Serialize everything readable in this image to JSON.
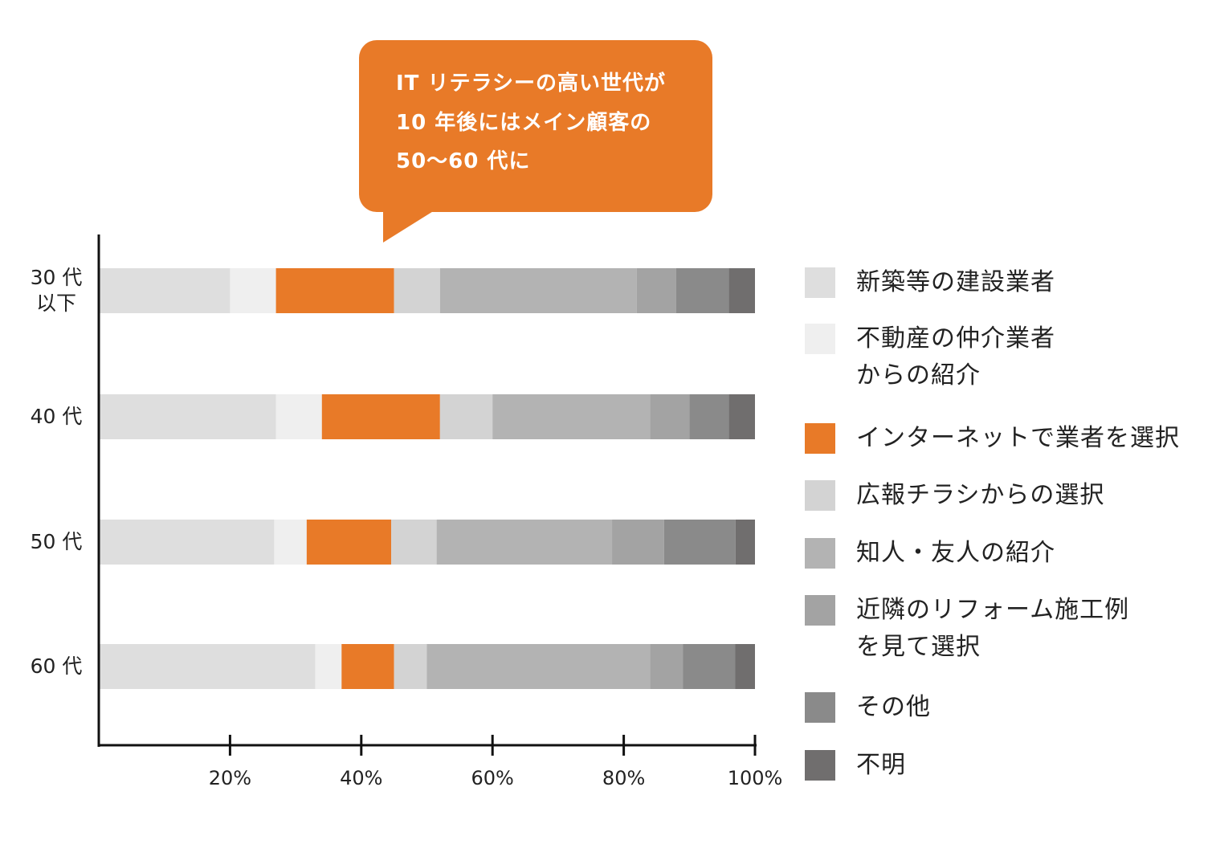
{
  "callout": {
    "lines": [
      "IT リテラシーの高い世代が",
      "10 年後にはメイン顧客の",
      "50～60 代に"
    ],
    "color": "#e87a28"
  },
  "chart_data": {
    "type": "bar",
    "orientation": "horizontal",
    "stacked": true,
    "categories": [
      "30 代\n以下",
      "40 代",
      "50 代",
      "60 代"
    ],
    "category_lines": [
      [
        "30 代",
        "以下"
      ],
      [
        "40 代"
      ],
      [
        "50 代"
      ],
      [
        "60 代"
      ]
    ],
    "series": [
      {
        "name": "新築等の建設業者",
        "legend_lines": [
          "新築等の建設業者"
        ],
        "color": "#dedede",
        "values": [
          20,
          27,
          27,
          33
        ]
      },
      {
        "name": "不動産の仲介業者からの紹介",
        "legend_lines": [
          "不動産の仲介業者",
          "からの紹介"
        ],
        "color": "#efefef",
        "values": [
          7,
          7,
          5,
          4
        ]
      },
      {
        "name": "インターネットで業者を選択",
        "legend_lines": [
          "インターネットで業者を選択"
        ],
        "color": "#e87a28",
        "values": [
          18,
          18,
          13,
          8
        ]
      },
      {
        "name": "広報チラシからの選択",
        "legend_lines": [
          "広報チラシからの選択"
        ],
        "color": "#d3d3d3",
        "values": [
          7,
          8,
          7,
          5
        ]
      },
      {
        "name": "知人・友人の紹介",
        "legend_lines": [
          "知人・友人の紹介"
        ],
        "color": "#b3b3b3",
        "values": [
          30,
          24,
          27,
          34
        ]
      },
      {
        "name": "近隣のリフォーム施工例を見て選択",
        "legend_lines": [
          "近隣のリフォーム施工例",
          "を見て選択"
        ],
        "color": "#a3a3a3",
        "values": [
          6,
          6,
          8,
          5
        ]
      },
      {
        "name": "その他",
        "legend_lines": [
          "その他"
        ],
        "color": "#8a8a8a",
        "values": [
          8,
          6,
          11,
          8
        ]
      },
      {
        "name": "不明",
        "legend_lines": [
          "不明"
        ],
        "color": "#706e6e",
        "values": [
          4,
          4,
          3,
          3
        ]
      }
    ],
    "x_ticks": [
      20,
      40,
      60,
      80,
      100
    ],
    "x_tick_labels": [
      "20%",
      "40%",
      "60%",
      "80%",
      "100%"
    ],
    "xlim": [
      0,
      100
    ],
    "legend_position": "right",
    "grid": false
  }
}
